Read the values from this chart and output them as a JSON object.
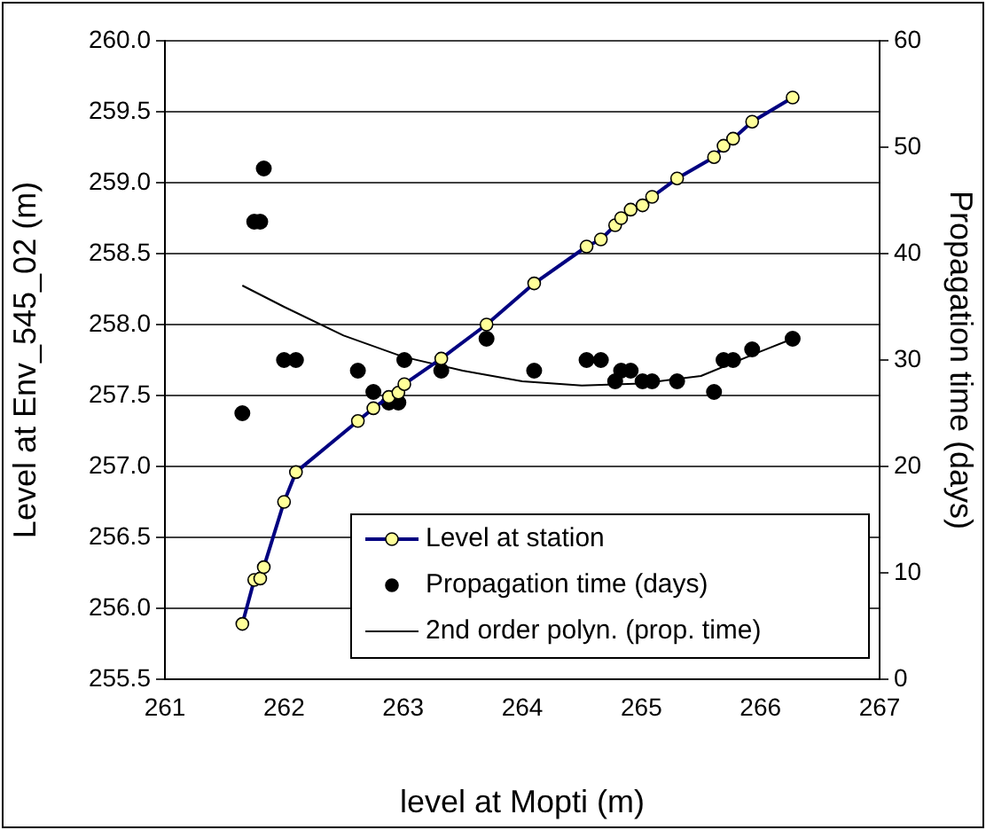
{
  "chart_data": {
    "type": "line",
    "xlabel": "level at Mopti (m)",
    "ylabel": "Level at Env_545_02 (m)",
    "y2label": "Propagation time (days)",
    "xlim": [
      261,
      267
    ],
    "xticks": [
      261,
      262,
      263,
      264,
      265,
      266,
      267
    ],
    "ylim": [
      255.5,
      260
    ],
    "yticks": [
      {
        "value": 255.5,
        "label": "255.5"
      },
      {
        "value": 256,
        "label": "256.0"
      },
      {
        "value": 256.5,
        "label": "256.5"
      },
      {
        "value": 257,
        "label": "257.0"
      },
      {
        "value": 257.5,
        "label": "257.5"
      },
      {
        "value": 258,
        "label": "258.0"
      },
      {
        "value": 258.5,
        "label": "258.5"
      },
      {
        "value": 259,
        "label": "259.0"
      },
      {
        "value": 259.5,
        "label": "259.5"
      },
      {
        "value": 260,
        "label": "260.0"
      }
    ],
    "y2lim": [
      0,
      60
    ],
    "y2ticks": [
      0,
      10,
      20,
      30,
      40,
      50,
      60
    ],
    "grid": "y",
    "legend": "bottom right",
    "series": [
      {
        "name": "Level at station",
        "color": "#000080",
        "marker": "circle",
        "x": [
          261.65,
          261.75,
          261.8,
          261.83,
          262.0,
          262.1,
          262.62,
          262.75,
          262.88,
          262.96,
          263.01,
          263.32,
          263.7,
          264.1,
          264.54,
          264.66,
          264.78,
          264.83,
          264.91,
          265.01,
          265.09,
          265.3,
          265.61,
          265.69,
          265.77,
          265.93,
          266.27
        ],
        "values": [
          255.89,
          256.2,
          256.21,
          256.29,
          256.75,
          256.96,
          257.32,
          257.41,
          257.49,
          257.52,
          257.58,
          257.76,
          258.0,
          258.29,
          258.55,
          258.6,
          258.7,
          258.75,
          258.81,
          258.84,
          258.9,
          259.03,
          259.18,
          259.26,
          259.31,
          259.43,
          259.6
        ]
      },
      {
        "name": "Propagation time (days)",
        "type": "scatter",
        "color": "#000000",
        "marker": "circle",
        "axis": "y2",
        "x": [
          261.65,
          261.75,
          261.8,
          261.83,
          262.0,
          262.1,
          262.62,
          262.75,
          262.88,
          262.96,
          263.01,
          263.32,
          263.7,
          264.1,
          264.54,
          264.66,
          264.78,
          264.83,
          264.91,
          265.01,
          265.09,
          265.3,
          265.61,
          265.69,
          265.77,
          265.93,
          266.27
        ],
        "values": [
          25,
          43,
          43,
          48,
          30,
          30,
          29,
          27,
          26,
          26,
          30,
          29,
          32,
          29,
          30,
          30,
          28,
          29,
          29,
          28,
          28,
          28,
          27,
          30,
          30,
          31,
          32
        ]
      },
      {
        "name": "2nd order polyn. (prop. time)",
        "type": "line",
        "color": "#000000",
        "marker": "none",
        "axis": "y2",
        "x": [
          261.65,
          262.0,
          262.5,
          263.0,
          263.5,
          264.0,
          264.5,
          265.0,
          265.5,
          266.0,
          266.27
        ],
        "values": [
          37,
          35,
          32.3,
          30.3,
          29,
          28,
          27.6,
          27.8,
          28.5,
          30.8,
          32
        ]
      }
    ]
  }
}
